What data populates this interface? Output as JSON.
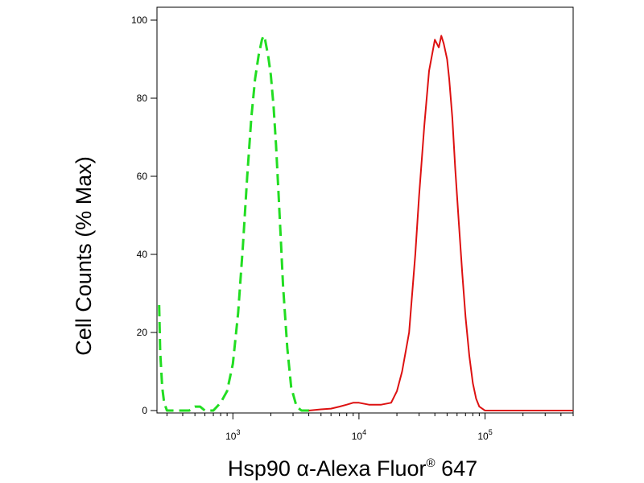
{
  "chart_data": {
    "type": "area",
    "xlabel": "Hsp90 α-Alexa Fluor® 647",
    "xlabel_main": "Hsp90 α-Alexa Fluor",
    "xlabel_reg": "®",
    "xlabel_tail": " 647",
    "ylabel": "Cell Counts (% Max)",
    "x_scale": "log",
    "xlim": [
      250,
      500000
    ],
    "ylim": [
      0,
      100
    ],
    "grid": false,
    "legend": "none",
    "y_ticks": [
      {
        "value": 0,
        "label": "0"
      },
      {
        "value": 20,
        "label": "20"
      },
      {
        "value": 40,
        "label": "40"
      },
      {
        "value": 60,
        "label": "60"
      },
      {
        "value": 80,
        "label": "80"
      },
      {
        "value": 100,
        "label": "100"
      }
    ],
    "x_ticks": [
      {
        "value": 1000,
        "base": "10",
        "exp": "3"
      },
      {
        "value": 10000,
        "base": "10",
        "exp": "4"
      },
      {
        "value": 100000,
        "base": "10",
        "exp": "5"
      }
    ],
    "series": [
      {
        "color": "#22dd22",
        "dash": true,
        "x": [
          260,
          265,
          275,
          285,
          300,
          320,
          350,
          400,
          450,
          500,
          550,
          600,
          700,
          800,
          900,
          1000,
          1100,
          1200,
          1300,
          1400,
          1500,
          1600,
          1700,
          1750,
          1800,
          1850,
          1900,
          2000,
          2100,
          2200,
          2300,
          2400,
          2500,
          2700,
          2900,
          3200,
          3500,
          3800,
          4200
        ],
        "y": [
          27,
          15,
          6,
          2,
          0,
          0,
          0,
          0,
          0,
          1,
          1,
          0,
          0,
          2,
          5,
          12,
          25,
          42,
          60,
          75,
          85,
          91,
          95,
          96,
          95,
          93,
          91,
          86,
          78,
          68,
          56,
          44,
          32,
          16,
          6,
          1,
          0,
          0,
          0
        ]
      },
      {
        "color": "#dd1111",
        "dash": false,
        "x": [
          4000,
          5000,
          6000,
          7000,
          8000,
          9000,
          10000,
          12000,
          15000,
          18000,
          20000,
          22000,
          25000,
          28000,
          30000,
          33000,
          36000,
          40000,
          43000,
          45000,
          47000,
          50000,
          52000,
          55000,
          58000,
          62000,
          66000,
          70000,
          75000,
          80000,
          85000,
          90000,
          100000,
          120000,
          200000,
          500000
        ],
        "y": [
          0,
          0.3,
          0.5,
          1,
          1.5,
          2,
          2,
          1.5,
          1.5,
          2,
          5,
          10,
          20,
          40,
          55,
          73,
          87,
          95,
          93,
          96,
          94,
          90,
          85,
          75,
          62,
          48,
          35,
          24,
          14,
          7,
          3,
          1,
          0,
          0,
          0,
          0
        ]
      }
    ]
  }
}
